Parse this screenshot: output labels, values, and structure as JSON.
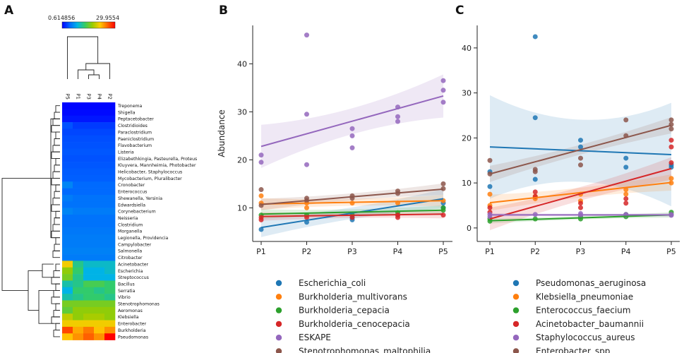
{
  "panels": {
    "a": "A",
    "b": "B",
    "c": "C"
  },
  "colors": {
    "heat_stops": [
      "#0000ff",
      "#0066ff",
      "#00b3e6",
      "#33cc66",
      "#99cc00",
      "#ffcc00",
      "#ff6600",
      "#ff0000"
    ],
    "tab10": [
      "#1f77b4",
      "#ff7f0e",
      "#2ca02c",
      "#d62728",
      "#9467bd",
      "#8c564b"
    ]
  },
  "chart_data": [
    {
      "type": "heatmap",
      "panel": "A",
      "colorbar": {
        "min_label": "0.614856",
        "max_label": "29.9554",
        "min": 0.614856,
        "max": 29.9554
      },
      "columns": [
        "P5",
        "P1",
        "P3",
        "P4",
        "P2"
      ],
      "rows": [
        "Treponema",
        "Shigella",
        "Peptacetobacter",
        "Clostridioides",
        "Paraclostridium",
        "Paeniclostridium",
        "Flavobacterium",
        "Listeria",
        "Elizabethkingia, Pasteurella, Proteus",
        "Kluyvera, Mannheimia, Photobacter",
        "Helicobacter, Staphylococcus",
        "Mycobacterium, Pluralibacter",
        "Cronobacter",
        "Enterococcus",
        "Shewanella, Yersinia",
        "Edwardsiella",
        "Corynebacterium",
        "Neisseria",
        "Clostridium",
        "Morganella",
        "Legionella, Providencia",
        "Campylobacter",
        "Salmonella",
        "Citrobacter",
        "Acinetobacter",
        "Escherichia",
        "Streptococcus",
        "Bacillus",
        "Serratia",
        "Vibrio",
        "Stenotrophomonas",
        "Aeromonas",
        "Klebsiella",
        "Enterobacter",
        "Burkholderia",
        "Pseudomonas"
      ],
      "values": [
        [
          0.8,
          0.8,
          0.8,
          0.8,
          0.8
        ],
        [
          1.0,
          1.0,
          1.0,
          1.0,
          1.0
        ],
        [
          1.5,
          1.5,
          1.5,
          1.5,
          1.5
        ],
        [
          4.0,
          3.0,
          3.0,
          3.0,
          3.0
        ],
        [
          3.5,
          3.5,
          3.5,
          3.5,
          3.5
        ],
        [
          3.8,
          3.8,
          3.8,
          3.8,
          3.8
        ],
        [
          4.0,
          4.0,
          4.0,
          4.0,
          4.0
        ],
        [
          4.2,
          4.2,
          4.2,
          4.2,
          4.2
        ],
        [
          4.0,
          4.0,
          4.0,
          4.0,
          4.0
        ],
        [
          4.2,
          4.2,
          4.2,
          4.2,
          4.2
        ],
        [
          4.4,
          4.4,
          4.4,
          4.4,
          4.4
        ],
        [
          4.5,
          4.5,
          4.5,
          4.5,
          4.5
        ],
        [
          6.5,
          5.0,
          5.0,
          5.0,
          5.0
        ],
        [
          5.0,
          5.0,
          5.0,
          5.0,
          5.0
        ],
        [
          6.0,
          5.5,
          5.5,
          5.5,
          5.5
        ],
        [
          5.5,
          5.5,
          5.5,
          5.5,
          5.5
        ],
        [
          6.5,
          6.0,
          6.0,
          6.0,
          6.0
        ],
        [
          5.5,
          5.5,
          5.5,
          5.5,
          5.5
        ],
        [
          5.5,
          5.5,
          5.5,
          5.5,
          5.5
        ],
        [
          5.8,
          5.8,
          5.8,
          5.8,
          5.8
        ],
        [
          6.0,
          6.0,
          6.0,
          6.0,
          6.0
        ],
        [
          6.0,
          6.0,
          6.0,
          6.0,
          6.0
        ],
        [
          6.3,
          6.3,
          6.3,
          6.3,
          6.3
        ],
        [
          6.0,
          6.0,
          6.0,
          6.0,
          6.0
        ],
        [
          21.0,
          12.0,
          10.0,
          10.0,
          10.0
        ],
        [
          17.0,
          13.0,
          9.0,
          9.0,
          10.0
        ],
        [
          16.0,
          12.0,
          9.0,
          9.0,
          9.0
        ],
        [
          11.0,
          12.0,
          14.0,
          14.0,
          13.0
        ],
        [
          9.0,
          13.0,
          13.0,
          12.0,
          13.0
        ],
        [
          11.0,
          12.0,
          13.0,
          13.0,
          12.0
        ],
        [
          16.0,
          16.0,
          16.0,
          16.0,
          16.0
        ],
        [
          15.0,
          17.0,
          17.0,
          17.0,
          17.0
        ],
        [
          19.0,
          17.0,
          18.0,
          18.0,
          17.0
        ],
        [
          21.0,
          21.0,
          21.0,
          21.0,
          21.0
        ],
        [
          27.0,
          23.0,
          25.0,
          22.0,
          24.0
        ],
        [
          22.0,
          24.0,
          26.0,
          24.0,
          29.9
        ]
      ],
      "row_dendrogram": "clustered",
      "column_dendrogram": "clustered"
    },
    {
      "type": "scatter",
      "panel": "B",
      "ylabel": "Abundance",
      "xlabel": "",
      "categories": [
        "P1",
        "P2",
        "P3",
        "P4",
        "P5"
      ],
      "ylim": [
        3,
        48
      ],
      "yticks": [
        10,
        20,
        30,
        40
      ],
      "series": [
        {
          "name": "Escherichia_coli",
          "points": [
            [
              1,
              5.5
            ],
            [
              2,
              7.0
            ],
            [
              3,
              7.5
            ],
            [
              3,
              8.0
            ],
            [
              4,
              8.5
            ],
            [
              5,
              10.0
            ],
            [
              5,
              11.0
            ]
          ],
          "fit": [
            5.9,
            11.9
          ],
          "band": 2.0
        },
        {
          "name": "Burkholderia_multivorans",
          "points": [
            [
              1,
              12.5
            ],
            [
              1,
              11.0
            ],
            [
              2,
              11.0
            ],
            [
              2,
              10.0
            ],
            [
              3,
              11.0
            ],
            [
              4,
              11.0
            ],
            [
              5,
              11.5
            ]
          ],
          "fit": [
            10.8,
            11.5
          ],
          "band": 1.2
        },
        {
          "name": "Burkholderia_cepacia",
          "points": [
            [
              1,
              8.5
            ],
            [
              2,
              8.5
            ],
            [
              3,
              8.5
            ],
            [
              4,
              9.0
            ],
            [
              5,
              10.0
            ],
            [
              5,
              9.5
            ]
          ],
          "fit": [
            8.7,
            9.5
          ],
          "band": 1.0
        },
        {
          "name": "Burkholderia_cenocepacia",
          "points": [
            [
              1,
              8.0
            ],
            [
              1,
              7.5
            ],
            [
              2,
              8.0
            ],
            [
              3,
              8.0
            ],
            [
              4,
              8.0
            ],
            [
              4,
              8.5
            ],
            [
              5,
              8.5
            ]
          ],
          "fit": [
            8.2,
            8.7
          ],
          "band": 0.9
        },
        {
          "name": "ESKAPE",
          "points": [
            [
              1,
              19.5
            ],
            [
              1,
              21.0
            ],
            [
              2,
              46.0
            ],
            [
              2,
              29.5
            ],
            [
              2,
              19.0
            ],
            [
              3,
              26.5
            ],
            [
              3,
              25.0
            ],
            [
              3,
              22.5
            ],
            [
              4,
              31.0
            ],
            [
              4,
              29.0
            ],
            [
              4,
              28.0
            ],
            [
              5,
              36.5
            ],
            [
              5,
              34.5
            ],
            [
              5,
              32.0
            ]
          ],
          "fit": [
            22.8,
            33.3
          ],
          "band": 4.5
        },
        {
          "name": "Stenotrophomonas_maltophilia",
          "points": [
            [
              1,
              13.8
            ],
            [
              1,
              10.5
            ],
            [
              2,
              12.0
            ],
            [
              2,
              11.5
            ],
            [
              3,
              12.0
            ],
            [
              3,
              12.5
            ],
            [
              4,
              13.5
            ],
            [
              4,
              13.0
            ],
            [
              5,
              15.0
            ],
            [
              5,
              14.0
            ]
          ],
          "fit": [
            10.7,
            13.9
          ],
          "band": 1.2
        }
      ]
    },
    {
      "type": "scatter",
      "panel": "C",
      "ylabel": "",
      "xlabel": "",
      "categories": [
        "P1",
        "P2",
        "P3",
        "P4",
        "P5"
      ],
      "ylim": [
        -3,
        45
      ],
      "yticks": [
        0,
        10,
        20,
        30,
        40
      ],
      "series": [
        {
          "name": "Pseudomonas_aeruginosa",
          "points": [
            [
              1,
              12.5
            ],
            [
              1,
              9.2
            ],
            [
              2,
              42.5
            ],
            [
              2,
              24.5
            ],
            [
              2,
              10.8
            ],
            [
              3,
              19.5
            ],
            [
              3,
              18.0
            ],
            [
              4,
              15.5
            ],
            [
              4,
              13.5
            ],
            [
              5,
              14.0
            ],
            [
              5,
              13.5
            ]
          ],
          "fit": [
            18.0,
            16.3
          ],
          "band": 11.5
        },
        {
          "name": "Klebsiella_pneumoniae",
          "points": [
            [
              1,
              7.5
            ],
            [
              1,
              5.0
            ],
            [
              2,
              7.0
            ],
            [
              2,
              6.5
            ],
            [
              3,
              7.5
            ],
            [
              3,
              6.0
            ],
            [
              4,
              8.5
            ],
            [
              4,
              7.5
            ],
            [
              5,
              11.0
            ],
            [
              5,
              10.0
            ]
          ],
          "fit": [
            5.6,
            10.1
          ],
          "band": 1.8
        },
        {
          "name": "Enterococcus_faecium",
          "points": [
            [
              1,
              2.0
            ],
            [
              1,
              1.5
            ],
            [
              2,
              2.0
            ],
            [
              3,
              2.0
            ],
            [
              3,
              2.5
            ],
            [
              4,
              2.5
            ],
            [
              4,
              3.0
            ],
            [
              5,
              3.5
            ],
            [
              5,
              3.0
            ]
          ],
          "fit": [
            1.6,
            2.9
          ],
          "band": 0.6
        },
        {
          "name": "Acinetobacter_baumannii",
          "points": [
            [
              1,
              4.5
            ],
            [
              1,
              3.5
            ],
            [
              2,
              8.0
            ],
            [
              2,
              7.0
            ],
            [
              3,
              5.5
            ],
            [
              3,
              4.5
            ],
            [
              4,
              6.5
            ],
            [
              4,
              5.5
            ],
            [
              5,
              19.5
            ],
            [
              5,
              18.0
            ],
            [
              5,
              14.5
            ]
          ],
          "fit": [
            2.0,
            13.2
          ],
          "band": 2.5
        },
        {
          "name": "Staphylococcus_aureus",
          "points": [
            [
              1,
              3.0
            ],
            [
              1,
              2.5
            ],
            [
              2,
              3.0
            ],
            [
              3,
              2.8
            ],
            [
              3,
              3.2
            ],
            [
              4,
              3.0
            ],
            [
              4,
              2.8
            ],
            [
              5,
              2.8
            ],
            [
              5,
              3.0
            ]
          ],
          "fit": [
            2.9,
            2.9
          ],
          "band": 0.4
        },
        {
          "name": "Enterobacter_spp",
          "points": [
            [
              1,
              15.0
            ],
            [
              1,
              12.0
            ],
            [
              2,
              13.0
            ],
            [
              2,
              12.5
            ],
            [
              3,
              15.5
            ],
            [
              3,
              14.0
            ],
            [
              4,
              24.0
            ],
            [
              4,
              20.5
            ],
            [
              5,
              24.0
            ],
            [
              5,
              23.0
            ],
            [
              5,
              22.0
            ]
          ],
          "fit": [
            12.0,
            22.8
          ],
          "band": 1.8
        }
      ]
    }
  ]
}
